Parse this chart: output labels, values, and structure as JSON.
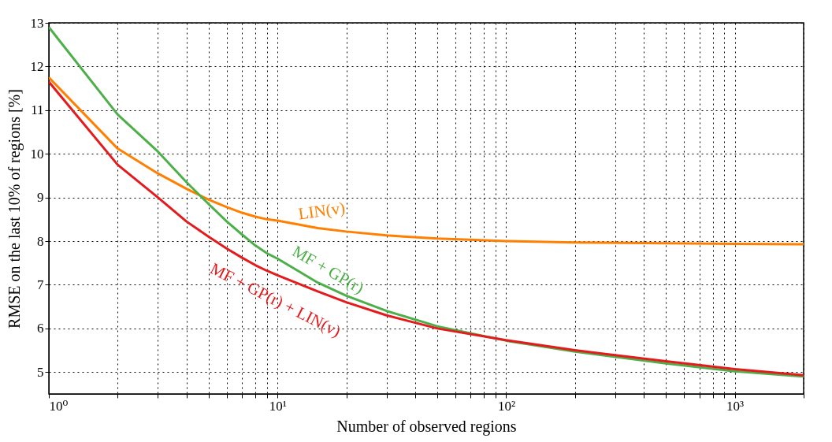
{
  "chart_data": {
    "type": "line",
    "xlabel": "Number of observed regions",
    "ylabel": "RMSE on the last 10% of regions [%]",
    "x": [
      1,
      2,
      3,
      4,
      5,
      6,
      7,
      8,
      9,
      10,
      15,
      20,
      30,
      50,
      100,
      200,
      500,
      1000,
      2000
    ],
    "series": [
      {
        "name": "LIN(v)",
        "color": "#ff7f00",
        "values": [
          11.75,
          10.12,
          9.55,
          9.2,
          8.95,
          8.78,
          8.65,
          8.56,
          8.5,
          8.47,
          8.3,
          8.22,
          8.13,
          8.06,
          8.0,
          7.97,
          7.95,
          7.94,
          7.93
        ]
      },
      {
        "name": "MF + GP(r)",
        "color": "#4daf4a",
        "values": [
          12.9,
          10.9,
          10.05,
          9.35,
          8.85,
          8.45,
          8.15,
          7.9,
          7.72,
          7.6,
          7.05,
          6.75,
          6.4,
          6.05,
          5.72,
          5.47,
          5.2,
          5.02,
          4.9
        ]
      },
      {
        "name": "MF + GP(r) + LIN(v)",
        "color": "#e41a1c",
        "values": [
          11.65,
          9.75,
          9.0,
          8.45,
          8.1,
          7.83,
          7.62,
          7.45,
          7.32,
          7.22,
          6.85,
          6.6,
          6.3,
          6.0,
          5.73,
          5.5,
          5.25,
          5.07,
          4.93
        ]
      }
    ],
    "log": "x",
    "grid": true,
    "marker": "none",
    "line_style": "solid",
    "xlim": [
      1,
      2000
    ],
    "xticks": [
      {
        "value": 1,
        "label": "10⁰"
      },
      {
        "value": 2,
        "label": null
      },
      {
        "value": 3,
        "label": null
      },
      {
        "value": 4,
        "label": null
      },
      {
        "value": 5,
        "label": null
      },
      {
        "value": 6,
        "label": null
      },
      {
        "value": 7,
        "label": null
      },
      {
        "value": 8,
        "label": null
      },
      {
        "value": 9,
        "label": null
      },
      {
        "value": 10,
        "label": "10¹"
      },
      {
        "value": 20,
        "label": null
      },
      {
        "value": 30,
        "label": null
      },
      {
        "value": 40,
        "label": null
      },
      {
        "value": 50,
        "label": null
      },
      {
        "value": 60,
        "label": null
      },
      {
        "value": 70,
        "label": null
      },
      {
        "value": 80,
        "label": null
      },
      {
        "value": 90,
        "label": null
      },
      {
        "value": 100,
        "label": "10²"
      },
      {
        "value": 200,
        "label": null
      },
      {
        "value": 300,
        "label": null
      },
      {
        "value": 400,
        "label": null
      },
      {
        "value": 500,
        "label": null
      },
      {
        "value": 600,
        "label": null
      },
      {
        "value": 700,
        "label": null
      },
      {
        "value": 800,
        "label": null
      },
      {
        "value": 900,
        "label": null
      },
      {
        "value": 1000,
        "label": "10³"
      },
      {
        "value": 2000,
        "label": null
      }
    ],
    "ylim": [
      4.5,
      13
    ],
    "yticks": [
      5,
      6,
      7,
      8,
      9,
      10,
      11,
      12,
      13
    ]
  }
}
